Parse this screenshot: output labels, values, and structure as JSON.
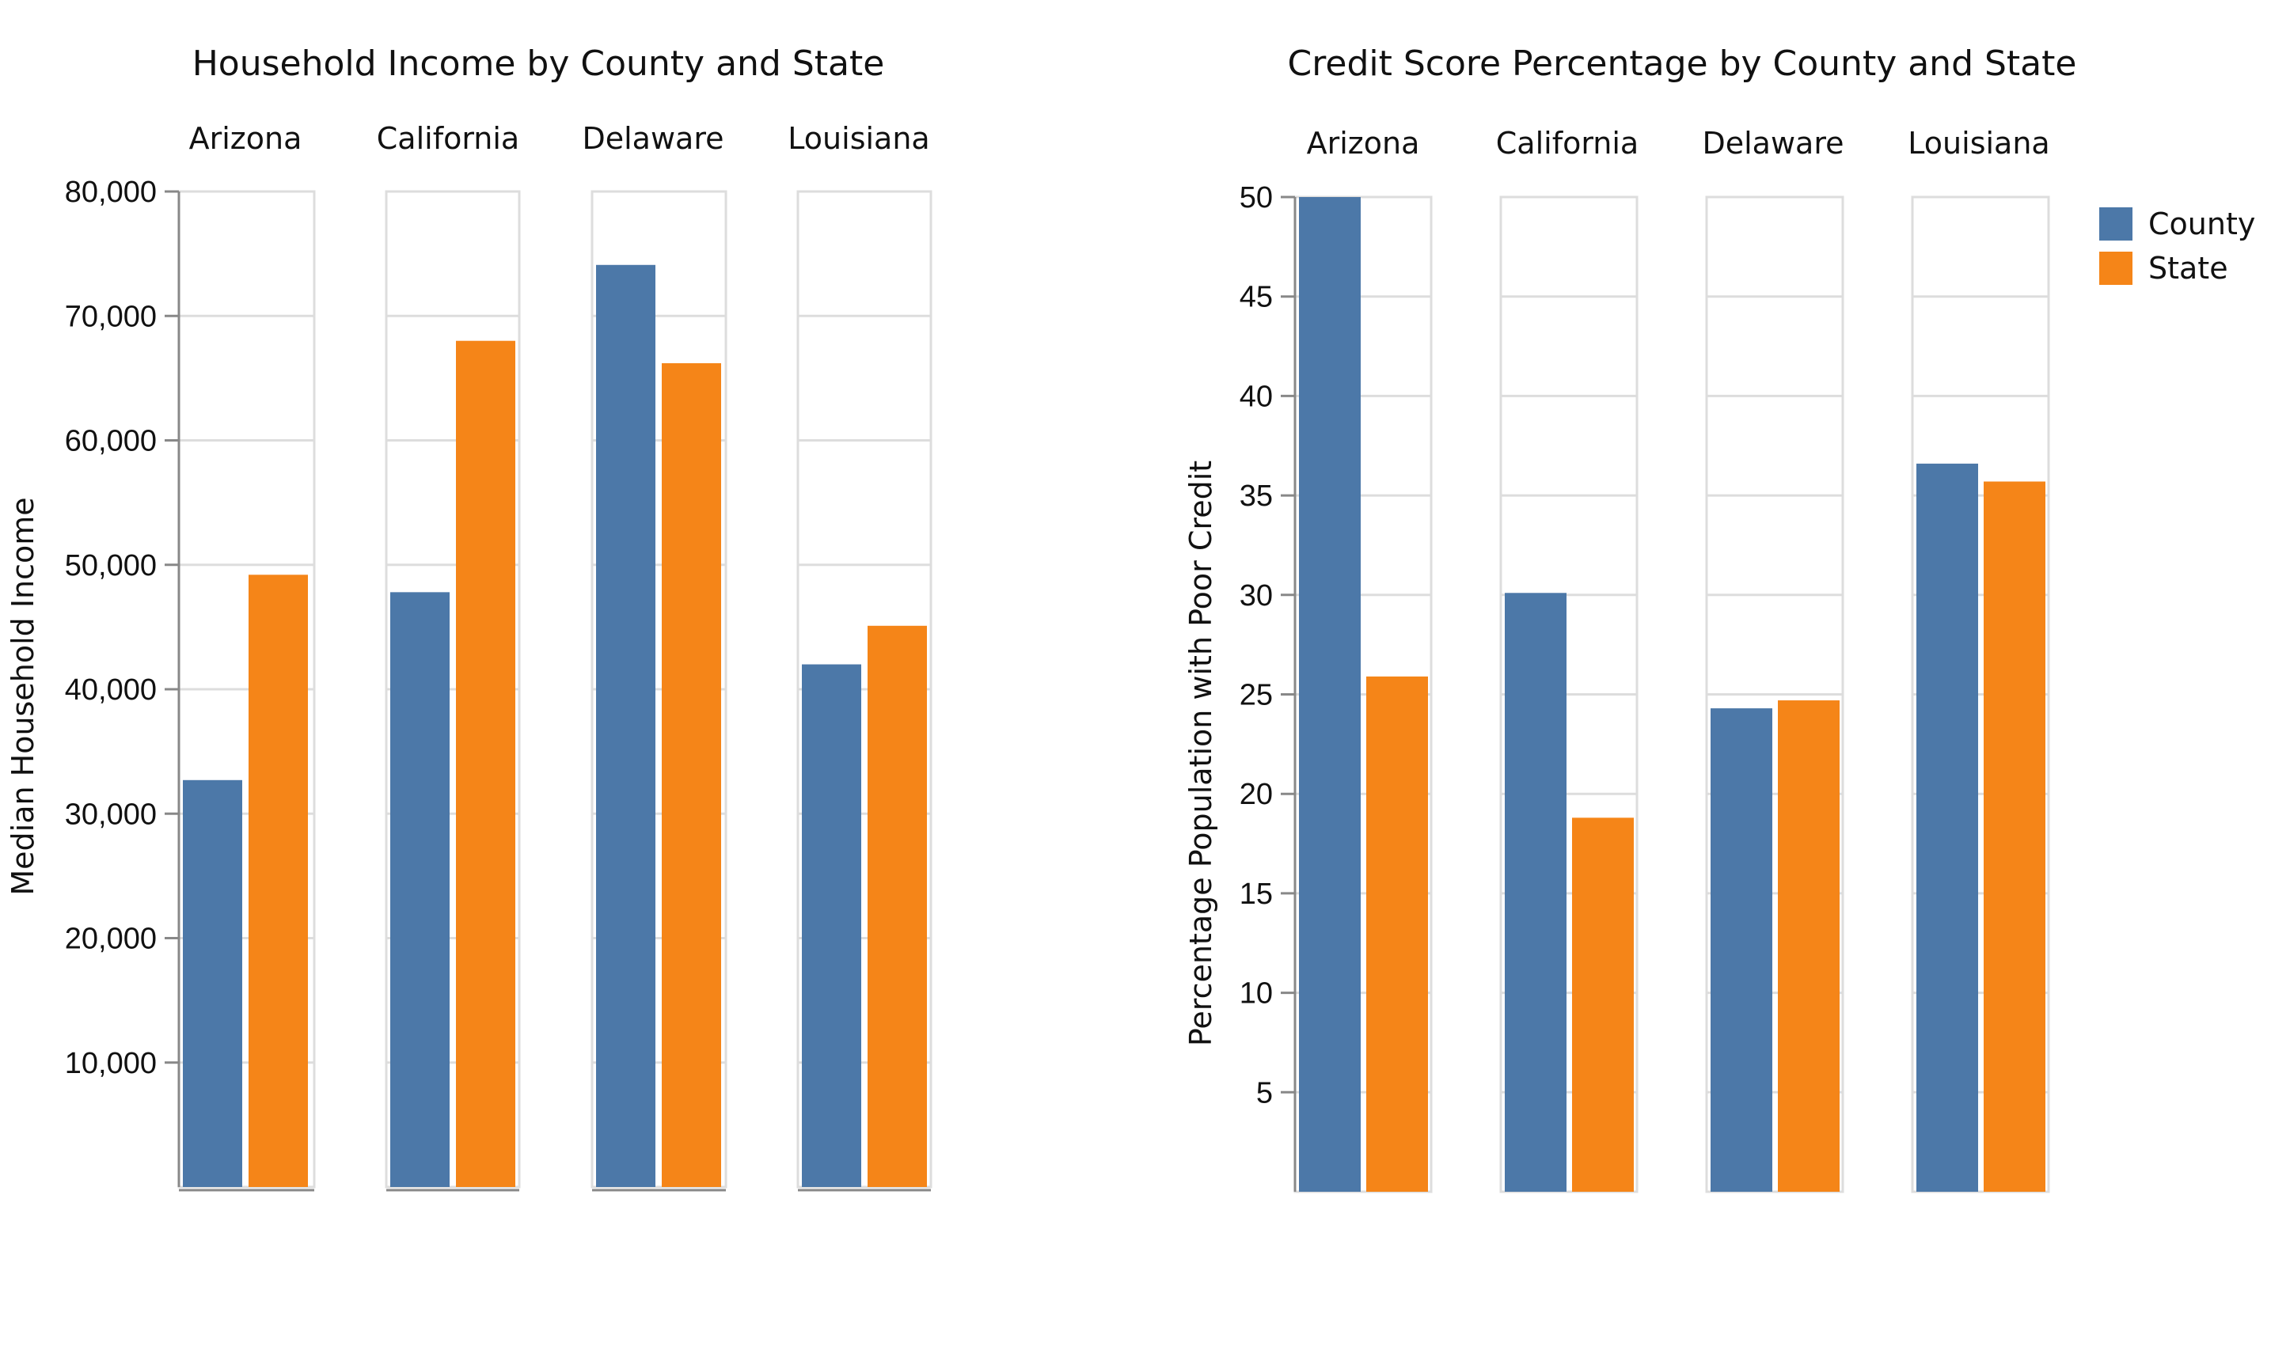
{
  "chart_data": [
    {
      "type": "bar",
      "title": "Household Income by County and State",
      "ylabel": "Median Household Income",
      "xlabel": "",
      "facets": [
        "Arizona",
        "California",
        "Delaware",
        "Louisiana"
      ],
      "series": [
        {
          "name": "County",
          "color": "#4c78a8",
          "values": [
            32700,
            47800,
            74100,
            42000
          ]
        },
        {
          "name": "State",
          "color": "#f58518",
          "values": [
            49200,
            68000,
            66200,
            45100
          ]
        }
      ],
      "ylim": [
        0,
        80000
      ],
      "yticks": [
        10000,
        20000,
        30000,
        40000,
        50000,
        60000,
        70000,
        80000
      ],
      "ytick_labels": [
        "10,000",
        "20,000",
        "30,000",
        "40,000",
        "50,000",
        "60,000",
        "70,000",
        "80,000"
      ],
      "grid": true
    },
    {
      "type": "bar",
      "title": "Credit Score Percentage by County and State",
      "ylabel": "Percentage Population with Poor Credit",
      "xlabel": "",
      "facets": [
        "Arizona",
        "California",
        "Delaware",
        "Louisiana"
      ],
      "series": [
        {
          "name": "County",
          "color": "#4c78a8",
          "values": [
            50,
            30.1,
            24.3,
            36.6
          ]
        },
        {
          "name": "State",
          "color": "#f58518",
          "values": [
            25.9,
            18.8,
            24.7,
            35.7
          ]
        }
      ],
      "ylim": [
        0,
        50
      ],
      "yticks": [
        5,
        10,
        15,
        20,
        25,
        30,
        35,
        40,
        45,
        50
      ],
      "ytick_labels": [
        "5",
        "10",
        "15",
        "20",
        "25",
        "30",
        "35",
        "40",
        "45",
        "50"
      ],
      "grid": true,
      "legend": {
        "placement": "top-right",
        "entries": [
          "County",
          "State"
        ]
      }
    }
  ]
}
